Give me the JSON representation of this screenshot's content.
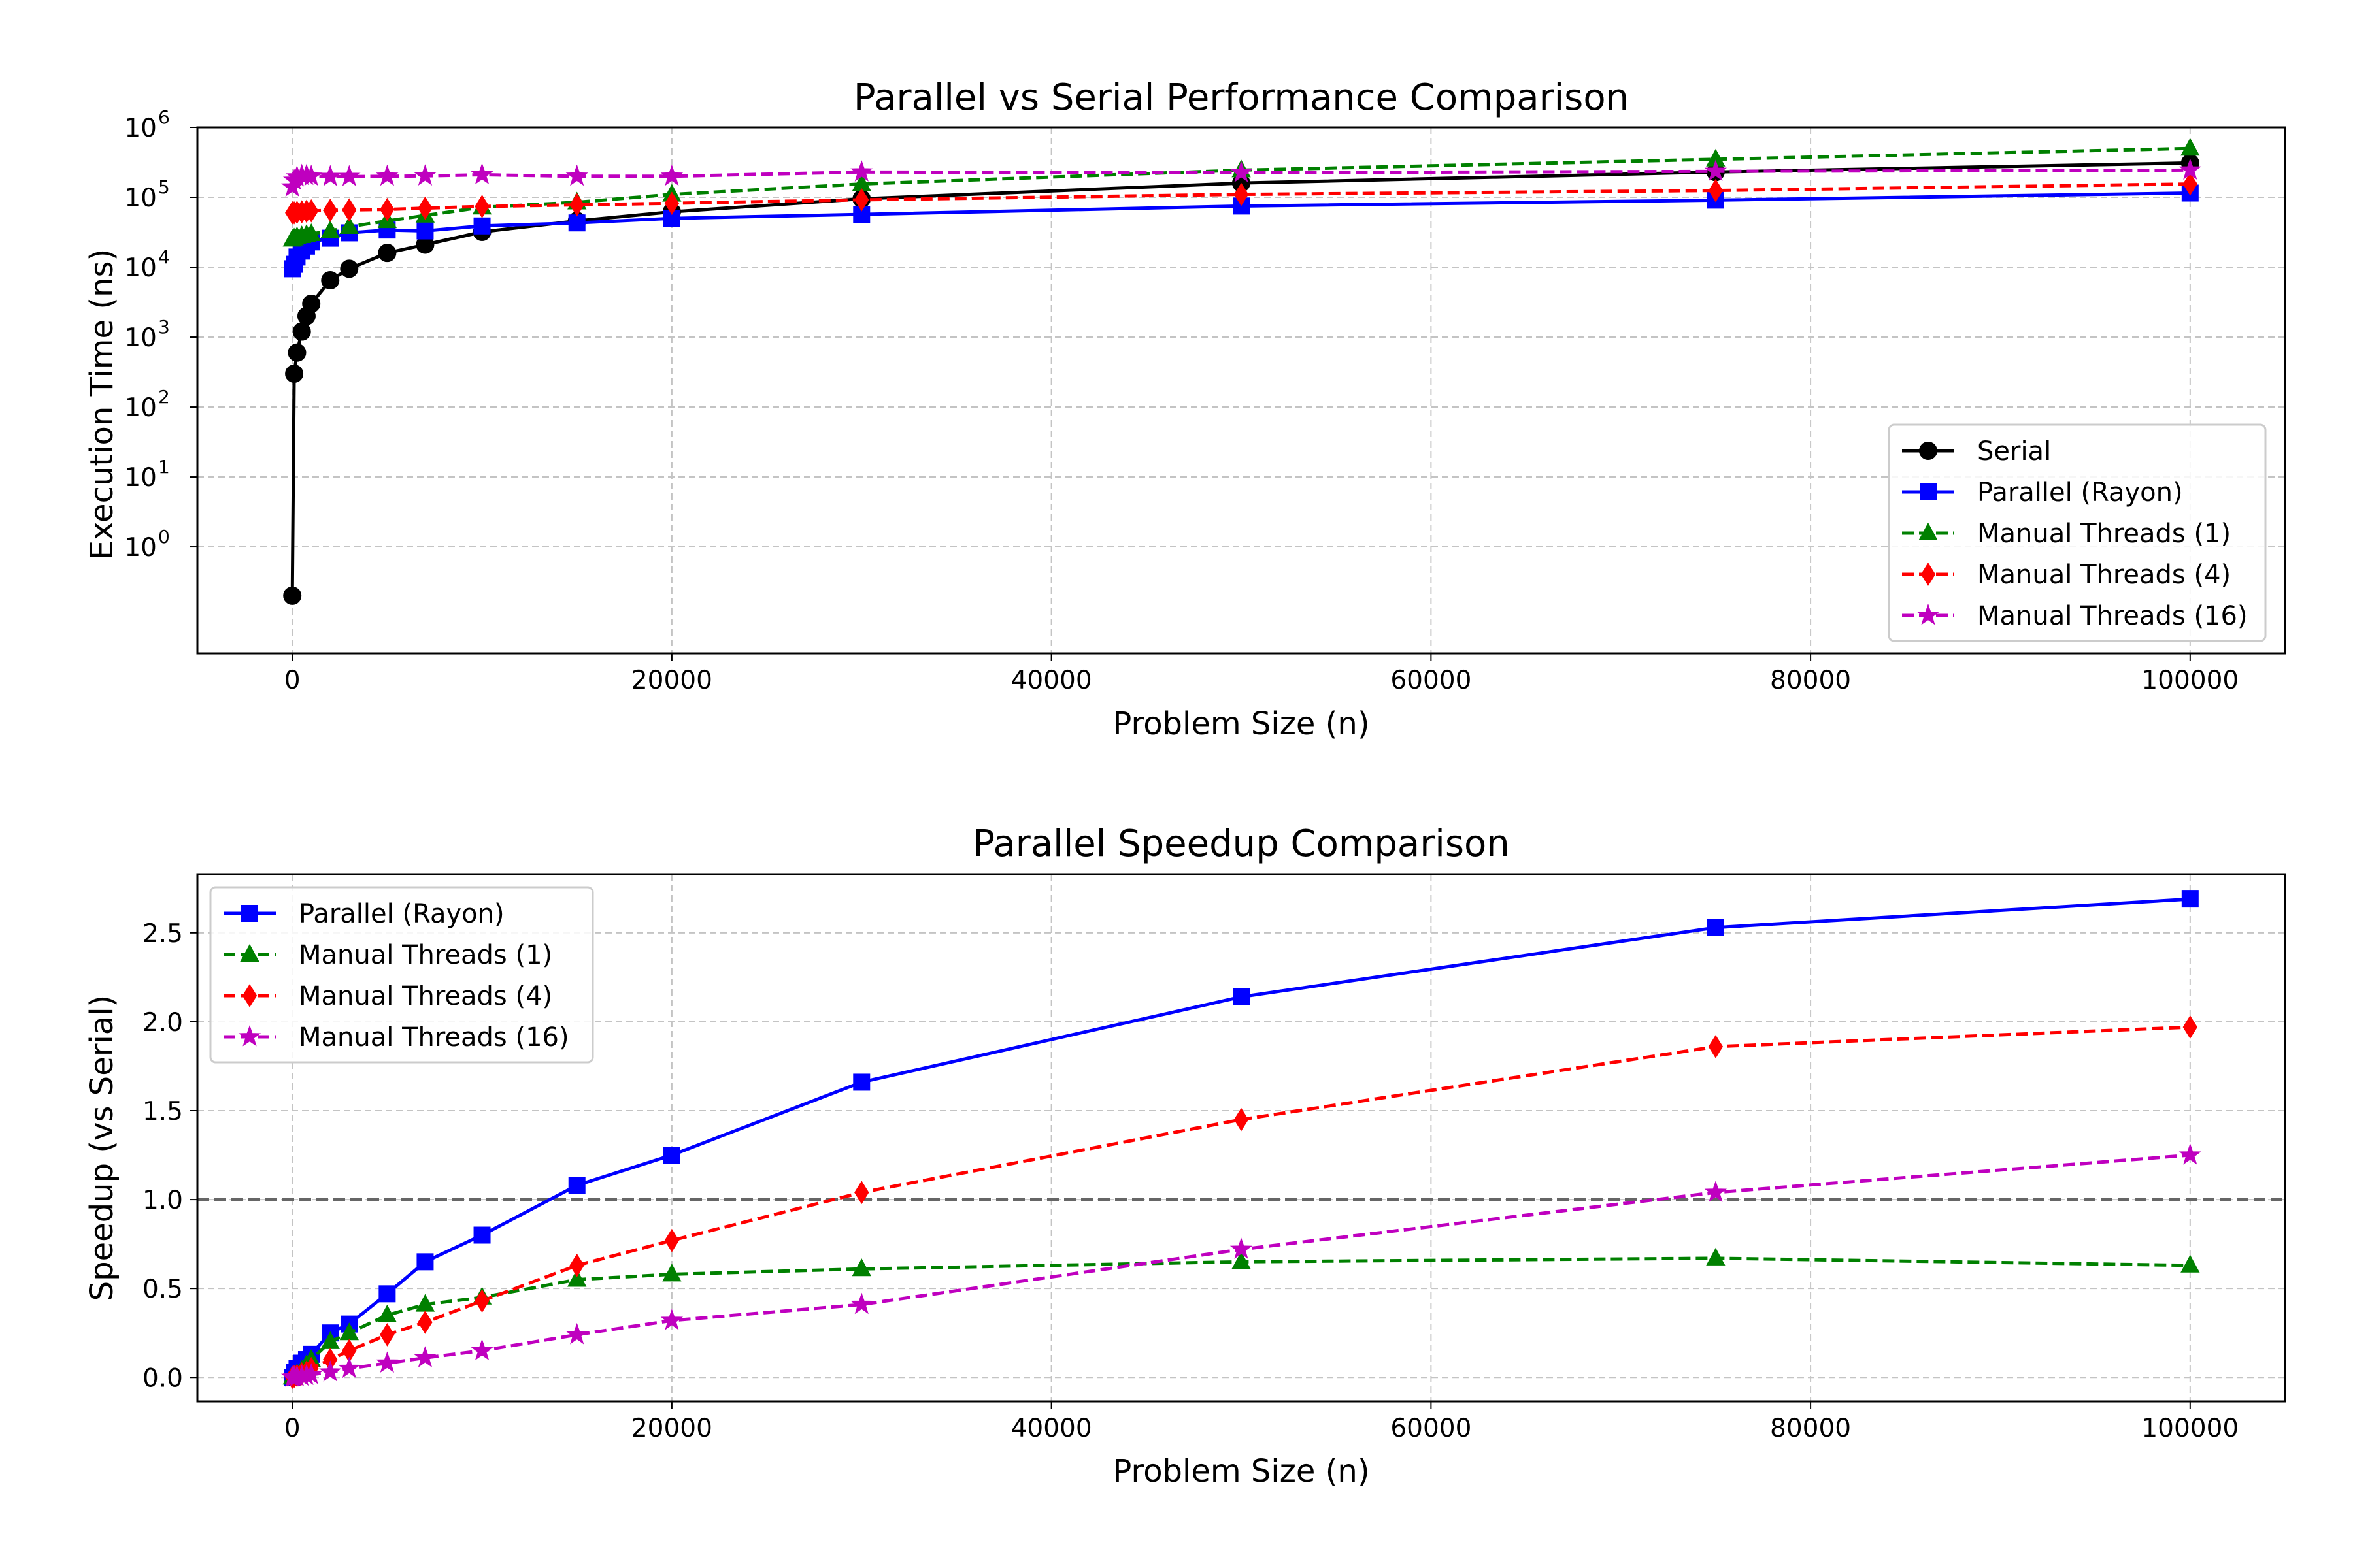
{
  "chart_data": [
    {
      "type": "line",
      "title": "Parallel vs Serial Performance Comparison",
      "xlabel": "Problem Size (n)",
      "ylabel": "Execution Time (ns)",
      "yscale": "log",
      "xlim": [
        -5000,
        105000
      ],
      "ylim": [
        0.03,
        1000000
      ],
      "xticks": [
        0,
        20000,
        40000,
        60000,
        80000,
        100000
      ],
      "xtick_labels": [
        "0",
        "20000",
        "40000",
        "60000",
        "80000",
        "100000"
      ],
      "yticks": [
        1,
        10,
        100,
        1000,
        10000,
        100000,
        1000000
      ],
      "ytick_labels": [
        {
          "base": "10",
          "exp": "0"
        },
        {
          "base": "10",
          "exp": "1"
        },
        {
          "base": "10",
          "exp": "2"
        },
        {
          "base": "10",
          "exp": "3"
        },
        {
          "base": "10",
          "exp": "4"
        },
        {
          "base": "10",
          "exp": "5"
        },
        {
          "base": "10",
          "exp": "6"
        }
      ],
      "grid": true,
      "legend_position": "lower-right",
      "x": [
        1,
        100,
        250,
        500,
        750,
        1000,
        2000,
        3000,
        5000,
        7000,
        10000,
        15000,
        20000,
        30000,
        50000,
        75000,
        100000
      ],
      "series": [
        {
          "name": "Serial",
          "color": "#000000",
          "marker": "circle",
          "dash": "solid",
          "values": [
            0.2,
            300,
            600,
            1200,
            2000,
            3000,
            6500,
            9500,
            16000,
            21000,
            32000,
            46000,
            62000,
            95000,
            160000,
            230000,
            310000
          ]
        },
        {
          "name": "Parallel (Rayon)",
          "color": "#0000ff",
          "marker": "square",
          "dash": "solid",
          "values": [
            9500,
            11000,
            14000,
            17000,
            20000,
            23000,
            26000,
            31000,
            34000,
            33000,
            39000,
            43000,
            50000,
            57000,
            75000,
            91000,
            115000
          ]
        },
        {
          "name": "Manual Threads (1)",
          "color": "#008000",
          "marker": "triangle",
          "dash": "dashed",
          "values": [
            25000,
            26000,
            27000,
            28000,
            29000,
            30000,
            33000,
            38000,
            46000,
            55000,
            72000,
            85000,
            110000,
            155000,
            245000,
            350000,
            500000
          ]
        },
        {
          "name": "Manual Threads (4)",
          "color": "#ff0000",
          "marker": "diamond",
          "dash": "dashed",
          "values": [
            60000,
            60000,
            61000,
            62000,
            63000,
            64000,
            65000,
            66000,
            67000,
            70000,
            74000,
            78000,
            82000,
            92000,
            110000,
            125000,
            155000
          ]
        },
        {
          "name": "Manual Threads (16)",
          "color": "#bf00bf",
          "marker": "star",
          "dash": "dashed",
          "values": [
            140000,
            175000,
            195000,
            205000,
            205000,
            200000,
            198000,
            198000,
            200000,
            202000,
            210000,
            200000,
            200000,
            230000,
            225000,
            235000,
            245000
          ]
        }
      ]
    },
    {
      "type": "line",
      "title": "Parallel Speedup Comparison",
      "xlabel": "Problem Size (n)",
      "ylabel": "Speedup (vs Serial)",
      "yscale": "linear",
      "xlim": [
        -5000,
        105000
      ],
      "ylim": [
        -0.135,
        2.83
      ],
      "xticks": [
        0,
        20000,
        40000,
        60000,
        80000,
        100000
      ],
      "xtick_labels": [
        "0",
        "20000",
        "40000",
        "60000",
        "80000",
        "100000"
      ],
      "yticks": [
        0,
        0.5,
        1,
        1.5,
        2,
        2.5
      ],
      "ytick_labels": [
        "0.0",
        "0.5",
        "1.0",
        "1.5",
        "2.0",
        "2.5"
      ],
      "grid": true,
      "legend_position": "upper-left",
      "reference_line": {
        "y": 1.0,
        "color": "#666666",
        "dash": "dashed"
      },
      "x": [
        1,
        100,
        250,
        500,
        750,
        1000,
        2000,
        3000,
        5000,
        7000,
        10000,
        15000,
        20000,
        30000,
        50000,
        75000,
        100000
      ],
      "series": [
        {
          "name": "Parallel (Rayon)",
          "color": "#0000ff",
          "marker": "square",
          "dash": "solid",
          "values": [
            0.0,
            0.03,
            0.05,
            0.08,
            0.1,
            0.13,
            0.25,
            0.3,
            0.47,
            0.65,
            0.8,
            1.08,
            1.25,
            1.66,
            2.14,
            2.53,
            2.69
          ]
        },
        {
          "name": "Manual Threads (1)",
          "color": "#008000",
          "marker": "triangle",
          "dash": "dashed",
          "values": [
            0.0,
            0.01,
            0.02,
            0.04,
            0.07,
            0.1,
            0.2,
            0.25,
            0.35,
            0.41,
            0.45,
            0.55,
            0.58,
            0.61,
            0.65,
            0.67,
            0.63
          ]
        },
        {
          "name": "Manual Threads (4)",
          "color": "#ff0000",
          "marker": "diamond",
          "dash": "dashed",
          "values": [
            0.0,
            0.005,
            0.01,
            0.02,
            0.03,
            0.05,
            0.1,
            0.15,
            0.24,
            0.31,
            0.43,
            0.63,
            0.77,
            1.04,
            1.45,
            1.86,
            1.97
          ]
        },
        {
          "name": "Manual Threads (16)",
          "color": "#bf00bf",
          "marker": "star",
          "dash": "dashed",
          "values": [
            0.0,
            0.002,
            0.003,
            0.006,
            0.01,
            0.015,
            0.03,
            0.05,
            0.08,
            0.11,
            0.15,
            0.24,
            0.32,
            0.41,
            0.72,
            1.04,
            1.25
          ]
        }
      ]
    }
  ]
}
